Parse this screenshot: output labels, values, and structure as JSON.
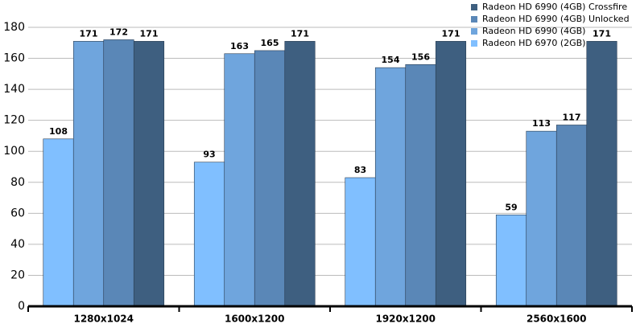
{
  "chart_data": {
    "type": "bar",
    "categories": [
      "1280x1024",
      "1600x1200",
      "1920x1200",
      "2560x1600"
    ],
    "series": [
      {
        "name": "Radeon HD 6970 (2GB)",
        "color": "#80bfff",
        "values": [
          108,
          93,
          83,
          59
        ]
      },
      {
        "name": "Radeon HD 6990 (4GB)",
        "color": "#6fa5dd",
        "values": [
          171,
          163,
          154,
          113
        ]
      },
      {
        "name": "Radeon HD 6990 (4GB) Unlocked",
        "color": "#5a87b7",
        "values": [
          172,
          165,
          156,
          117
        ]
      },
      {
        "name": "Radeon HD 6990 (4GB) Crossfire",
        "color": "#3e5f80",
        "values": [
          171,
          171,
          171,
          171
        ]
      }
    ],
    "ylim": [
      0,
      180
    ],
    "yticks": [
      0,
      20,
      40,
      60,
      80,
      100,
      120,
      140,
      160,
      180
    ],
    "grid": true,
    "legend": "top-right"
  }
}
